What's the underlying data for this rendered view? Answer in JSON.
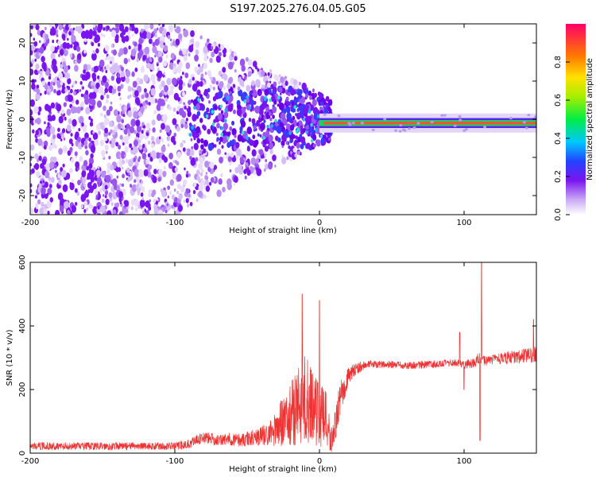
{
  "title": "S197.2025.276.04.05.G05",
  "chart_data": [
    {
      "type": "heatmap",
      "name": "spectrogram",
      "xlabel": "Height of straight line (km)",
      "ylabel": "Frequency (Hz)",
      "xlim": [
        -200,
        150
      ],
      "ylim": [
        -25,
        25
      ],
      "xticks": [
        -200,
        -100,
        0,
        100
      ],
      "yticks": [
        -20,
        -10,
        0,
        10,
        20
      ],
      "colorbar": {
        "label": "Normalized spectral amplitude",
        "range": [
          0,
          1
        ],
        "ticks": [
          0.0,
          0.2,
          0.4,
          0.6,
          0.8
        ]
      },
      "features": {
        "noise_region_x": [
          -200,
          0
        ],
        "carrier_line_x": [
          0,
          150
        ],
        "carrier_frequency_hz": -1
      }
    },
    {
      "type": "line",
      "name": "snr",
      "xlabel": "Height of straight line (km)",
      "ylabel": "SNR (10 * v/v)",
      "xlim": [
        -200,
        150
      ],
      "ylim": [
        0,
        600
      ],
      "xticks": [
        -200,
        -100,
        0,
        100
      ],
      "yticks": [
        0,
        200,
        400,
        600
      ],
      "color": "#ee3333",
      "envelope": {
        "x": [
          -200,
          -100,
          -95,
          -90,
          -80,
          -70,
          -60,
          -55,
          -50,
          -40,
          -35,
          -30,
          -20,
          -15,
          -10,
          -5,
          0,
          5,
          8,
          10,
          12,
          15,
          20,
          25,
          30,
          40,
          60,
          80,
          95,
          100,
          108,
          110,
          112,
          115,
          120,
          130,
          140,
          150
        ],
        "mean": [
          22,
          22,
          25,
          30,
          50,
          40,
          45,
          40,
          45,
          55,
          60,
          80,
          120,
          150,
          170,
          160,
          120,
          100,
          40,
          60,
          120,
          180,
          240,
          265,
          275,
          280,
          275,
          280,
          285,
          280,
          285,
          300,
          290,
          290,
          295,
          300,
          305,
          310
        ],
        "spread": [
          12,
          12,
          14,
          15,
          20,
          18,
          22,
          20,
          25,
          30,
          40,
          60,
          100,
          130,
          140,
          130,
          110,
          90,
          40,
          50,
          60,
          50,
          30,
          20,
          15,
          12,
          12,
          12,
          12,
          15,
          15,
          20,
          18,
          15,
          15,
          20,
          22,
          25
        ]
      },
      "spikes": [
        {
          "x": -12,
          "y": 500
        },
        {
          "x": 0,
          "y": 480
        },
        {
          "x": 97,
          "y": 380
        },
        {
          "x": 100,
          "y": 200
        },
        {
          "x": 111,
          "y": 40
        },
        {
          "x": 112,
          "y": 620
        },
        {
          "x": 148,
          "y": 420
        }
      ]
    }
  ]
}
